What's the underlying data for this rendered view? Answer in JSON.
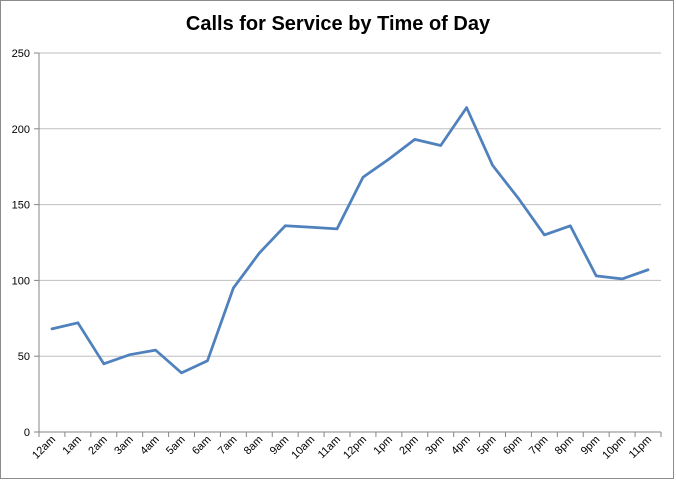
{
  "chart_data": {
    "type": "line",
    "title": "Calls for Service by Time of Day",
    "xlabel": "",
    "ylabel": "",
    "categories": [
      "12am",
      "1am",
      "2am",
      "3am",
      "4am",
      "5am",
      "6am",
      "7am",
      "8am",
      "9am",
      "10am",
      "11am",
      "12pm",
      "1pm",
      "2pm",
      "3pm",
      "4pm",
      "5pm",
      "6pm",
      "7pm",
      "8pm",
      "9pm",
      "10pm",
      "11pm"
    ],
    "series": [
      {
        "values": [
          68,
          72,
          45,
          51,
          54,
          39,
          47,
          95,
          118,
          136,
          135,
          134,
          168,
          180,
          193,
          189,
          214,
          176,
          154,
          130,
          136,
          103,
          101,
          107
        ]
      }
    ],
    "ylim": [
      0,
      250
    ],
    "yticks": [
      0,
      50,
      100,
      150,
      200,
      250
    ],
    "grid": true,
    "legend": "none",
    "line_color": "#4f81bd",
    "grid_color": "#bfbfbf"
  }
}
